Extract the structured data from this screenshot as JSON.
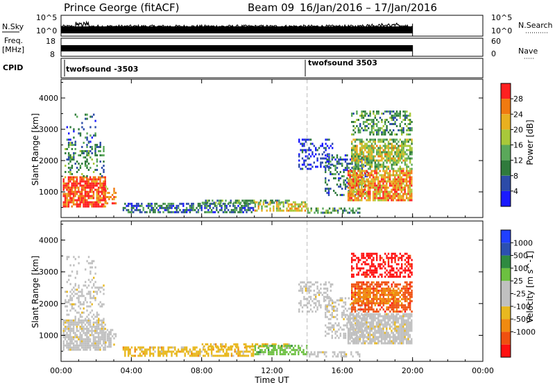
{
  "header": {
    "station": "Prince George (fitACF)",
    "beam": "Beam 09",
    "date_range": "16/Jan/2016 – 17/Jan/2016"
  },
  "side_labels": {
    "nsky": "N.Sky",
    "freq_top": "Freq.",
    "freq_unit": "[MHz]",
    "cpid": "CPID",
    "nsearch": "N.Search",
    "nave": "Nave"
  },
  "aux_ticks": {
    "nsky_top": "10^5",
    "nsky_bottom": "10^0",
    "freq_top": "18",
    "freq_bottom": "8",
    "nave_top": "60",
    "nave_bottom": "0"
  },
  "cpid_labels": [
    "twofsound -3503",
    "twofsound 3503"
  ],
  "colors": {
    "power_scale": [
      "#1a1aff",
      "#2c4ba8",
      "#2f7a3c",
      "#5aa85a",
      "#a8c83a",
      "#e8b020",
      "#f07a10",
      "#ff2020"
    ],
    "velocity_scale": [
      "#ff1010",
      "#f05010",
      "#f08a10",
      "#e8b820",
      "#c0c0c0",
      "#c0c0c0",
      "#6cc040",
      "#2e8a40",
      "#2c50b0",
      "#2040ff"
    ]
  },
  "chart_data": [
    {
      "type": "heatmap",
      "name": "power",
      "xlabel": "",
      "ylabel": "Slant Range [km]",
      "x_ticks": [
        "00:00",
        "04:00",
        "08:00",
        "12:00",
        "16:00",
        "20:00",
        "00:00"
      ],
      "y_ticks": [
        "1000",
        "2000",
        "3000",
        "4000"
      ],
      "xlim_hours": [
        0,
        24
      ],
      "ylim_km": [
        180,
        4600
      ],
      "colorbar_label": "Power [dB]",
      "colorbar_ticks": [
        "28",
        "24",
        "20",
        "16",
        "12",
        "8",
        "4"
      ],
      "crange": [
        0,
        32
      ]
    },
    {
      "type": "heatmap",
      "name": "velocity",
      "xlabel": "Time UT",
      "ylabel": "Slant Range [km]",
      "x_ticks": [
        "00:00",
        "04:00",
        "08:00",
        "12:00",
        "16:00",
        "20:00",
        "00:00"
      ],
      "y_ticks": [
        "1000",
        "2000",
        "3000",
        "4000"
      ],
      "xlim_hours": [
        0,
        24
      ],
      "ylim_km": [
        180,
        4600
      ],
      "colorbar_label": "Velocity [m s^-1]",
      "colorbar_ticks": [
        "1000",
        "500",
        "100",
        "25",
        "-25",
        "-100",
        "-500",
        "-1000"
      ]
    }
  ]
}
